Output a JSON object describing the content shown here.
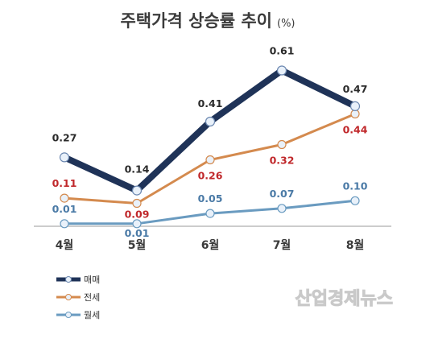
{
  "chart_data": {
    "type": "line",
    "title": "주택가격 상승률 추이",
    "unit": "(%)",
    "categories": [
      "4월",
      "5월",
      "6월",
      "7월",
      "8월"
    ],
    "series": [
      {
        "name": "매매",
        "values": [
          0.27,
          0.14,
          0.41,
          0.61,
          0.47
        ],
        "color": "#1f3358",
        "label_color": "#2b2b2b"
      },
      {
        "name": "전세",
        "values": [
          0.11,
          0.09,
          0.26,
          0.32,
          0.44
        ],
        "color": "#d48a4e",
        "label_color": "#c0282b"
      },
      {
        "name": "월세",
        "values": [
          0.01,
          0.01,
          0.05,
          0.07,
          0.1
        ],
        "color": "#6a9bc0",
        "label_color": "#4a7aa6"
      }
    ],
    "ylim": [
      0,
      0.7
    ],
    "grid": false,
    "legend_position": "bottom-left"
  },
  "watermark": "산업경제뉴스"
}
